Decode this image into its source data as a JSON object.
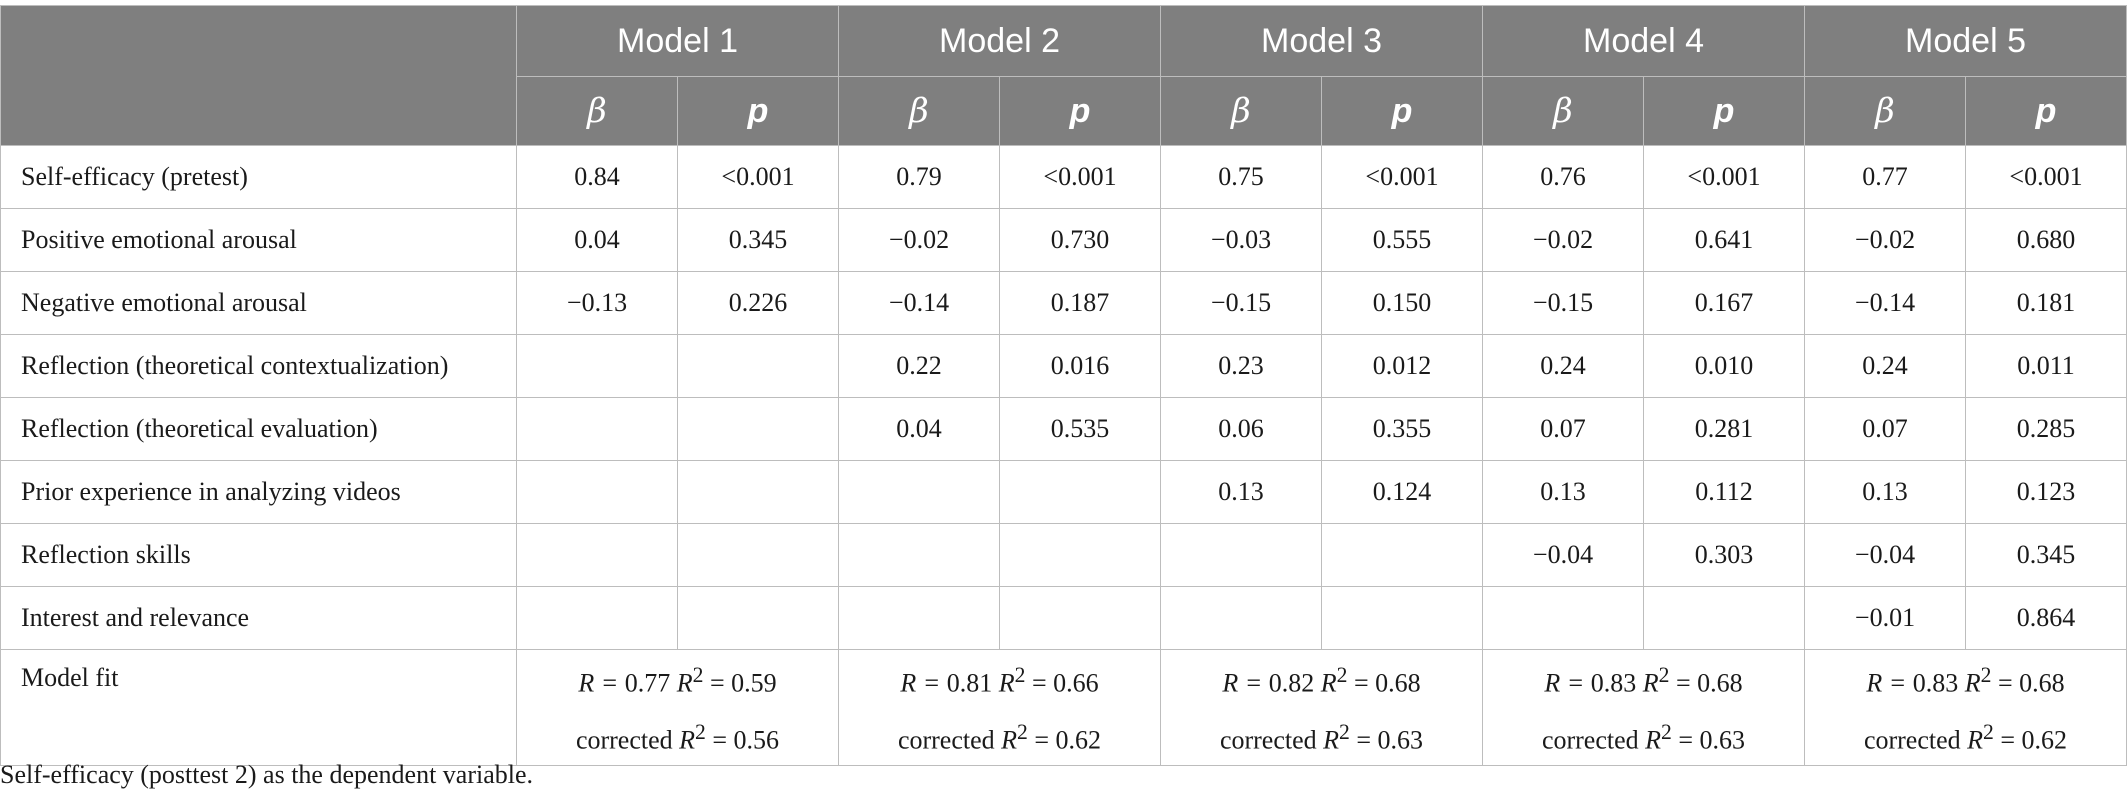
{
  "header": {
    "models": [
      "Model 1",
      "Model 2",
      "Model 3",
      "Model 4",
      "Model 5"
    ],
    "beta_label": "β",
    "p_label": "p"
  },
  "rows": [
    {
      "label": "Self-efficacy (pretest)",
      "cells": [
        "0.84",
        "<0.001",
        "0.79",
        "<0.001",
        "0.75",
        "<0.001",
        "0.76",
        "<0.001",
        "0.77",
        "<0.001"
      ]
    },
    {
      "label": "Positive emotional arousal",
      "cells": [
        "0.04",
        "0.345",
        "−0.02",
        "0.730",
        "−0.03",
        "0.555",
        "−0.02",
        "0.641",
        "−0.02",
        "0.680"
      ]
    },
    {
      "label": "Negative emotional arousal",
      "cells": [
        "−0.13",
        "0.226",
        "−0.14",
        "0.187",
        "−0.15",
        "0.150",
        "−0.15",
        "0.167",
        "−0.14",
        "0.181"
      ]
    },
    {
      "label": "Reflection (theoretical contextualization)",
      "cells": [
        "",
        "",
        "0.22",
        "0.016",
        "0.23",
        "0.012",
        "0.24",
        "0.010",
        "0.24",
        "0.011"
      ]
    },
    {
      "label": "Reflection (theoretical evaluation)",
      "cells": [
        "",
        "",
        "0.04",
        "0.535",
        "0.06",
        "0.355",
        "0.07",
        "0.281",
        "0.07",
        "0.285"
      ]
    },
    {
      "label": "Prior experience in analyzing videos",
      "cells": [
        "",
        "",
        "",
        "",
        "0.13",
        "0.124",
        "0.13",
        "0.112",
        "0.13",
        "0.123"
      ]
    },
    {
      "label": "Reflection skills",
      "cells": [
        "",
        "",
        "",
        "",
        "",
        "",
        "−0.04",
        "0.303",
        "−0.04",
        "0.345"
      ]
    },
    {
      "label": "Interest and relevance",
      "cells": [
        "",
        "",
        "",
        "",
        "",
        "",
        "",
        "",
        "−0.01",
        "0.864"
      ]
    }
  ],
  "model_fit": {
    "label": "Model fit",
    "r_prefix": "R = ",
    "r2_prefix": "R",
    "sq": "2",
    "eq": " = ",
    "corrected_prefix": "corrected ",
    "values": [
      {
        "r": "0.77",
        "r2": "0.59",
        "corrected_r2": "0.56"
      },
      {
        "r": "0.81",
        "r2": "0.66",
        "corrected_r2": "0.62"
      },
      {
        "r": "0.82",
        "r2": "0.68",
        "corrected_r2": "0.63"
      },
      {
        "r": "0.83",
        "r2": "0.68",
        "corrected_r2": "0.63"
      },
      {
        "r": "0.83",
        "r2": "0.68",
        "corrected_r2": "0.62"
      }
    ]
  },
  "note": "Self-efficacy (posttest 2) as the dependent variable."
}
